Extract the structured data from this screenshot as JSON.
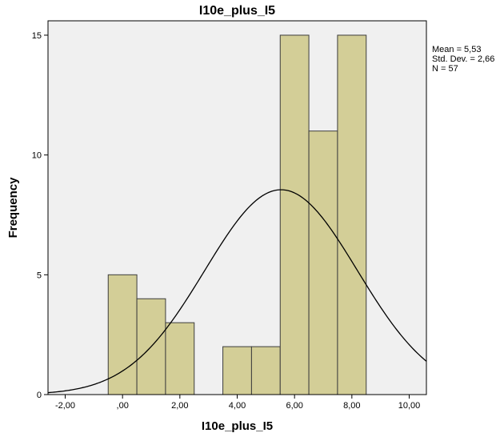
{
  "chart_data": {
    "type": "bar",
    "title": "I10e_plus_I5",
    "xlabel": "I10e_plus_I5",
    "ylabel": "Frequency",
    "xlim": [
      -2.6,
      10.6
    ],
    "ylim": [
      0,
      15.6
    ],
    "x_ticks": [
      -2,
      0,
      2,
      4,
      6,
      8,
      10
    ],
    "x_tick_labels": [
      "-2,00",
      ",00",
      "2,00",
      "4,00",
      "6,00",
      "8,00",
      "10,00"
    ],
    "y_ticks": [
      0,
      5,
      10,
      15
    ],
    "y_tick_labels": [
      "0",
      "5",
      "10",
      "15"
    ],
    "bins": [
      {
        "from": -0.5,
        "to": 0.5,
        "count": 5
      },
      {
        "from": 0.5,
        "to": 1.5,
        "count": 4
      },
      {
        "from": 1.5,
        "to": 2.5,
        "count": 3
      },
      {
        "from": 2.5,
        "to": 3.5,
        "count": 0
      },
      {
        "from": 3.5,
        "to": 4.5,
        "count": 2
      },
      {
        "from": 4.5,
        "to": 5.5,
        "count": 2
      },
      {
        "from": 5.5,
        "to": 6.5,
        "count": 15
      },
      {
        "from": 6.5,
        "to": 7.5,
        "count": 11
      },
      {
        "from": 7.5,
        "to": 8.5,
        "count": 15
      }
    ],
    "normal_curve": {
      "mean": 5.53,
      "std_dev": 2.66,
      "n": 57,
      "bin_width": 1
    },
    "stats_lines": [
      "Mean = 5,53",
      "Std. Dev. = 2,66",
      "N = 57"
    ],
    "grid": false,
    "colors": {
      "plot_background": "#f0f0f0",
      "bar_fill": "#d3ce97",
      "bar_stroke": "#3c3c3c",
      "curve": "#000000",
      "axis": "#000000"
    }
  }
}
